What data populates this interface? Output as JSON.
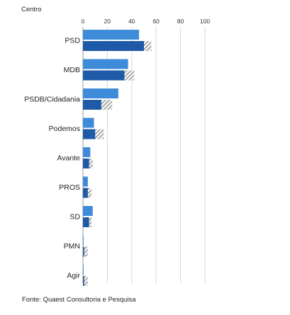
{
  "chart_data": {
    "type": "bar",
    "title": "Centro",
    "source": "Fonte: Quaest Consultoria e Pesquisa",
    "categories": [
      "PSD",
      "MDB",
      "PSDB/Cidadania",
      "Podemos",
      "Avante",
      "PROS",
      "SD",
      "PMN",
      "Agir"
    ],
    "xlim": [
      0,
      100
    ],
    "xticks": [
      0,
      20,
      40,
      60,
      80,
      100
    ],
    "grid": true,
    "orientation": "horizontal",
    "series": [
      {
        "values": [
          46,
          37,
          29,
          9,
          6,
          4,
          8,
          0.5,
          0.5
        ],
        "color": "#3d8bd9"
      },
      {
        "values": [
          50,
          34,
          15,
          10,
          5,
          4,
          5,
          1,
          1
        ],
        "color": "#1e5aa8"
      },
      {
        "values": [
          56,
          42,
          24,
          17,
          8,
          7,
          7,
          4,
          4
        ],
        "color": "#b9b9b9",
        "pattern": "hatched"
      }
    ]
  }
}
